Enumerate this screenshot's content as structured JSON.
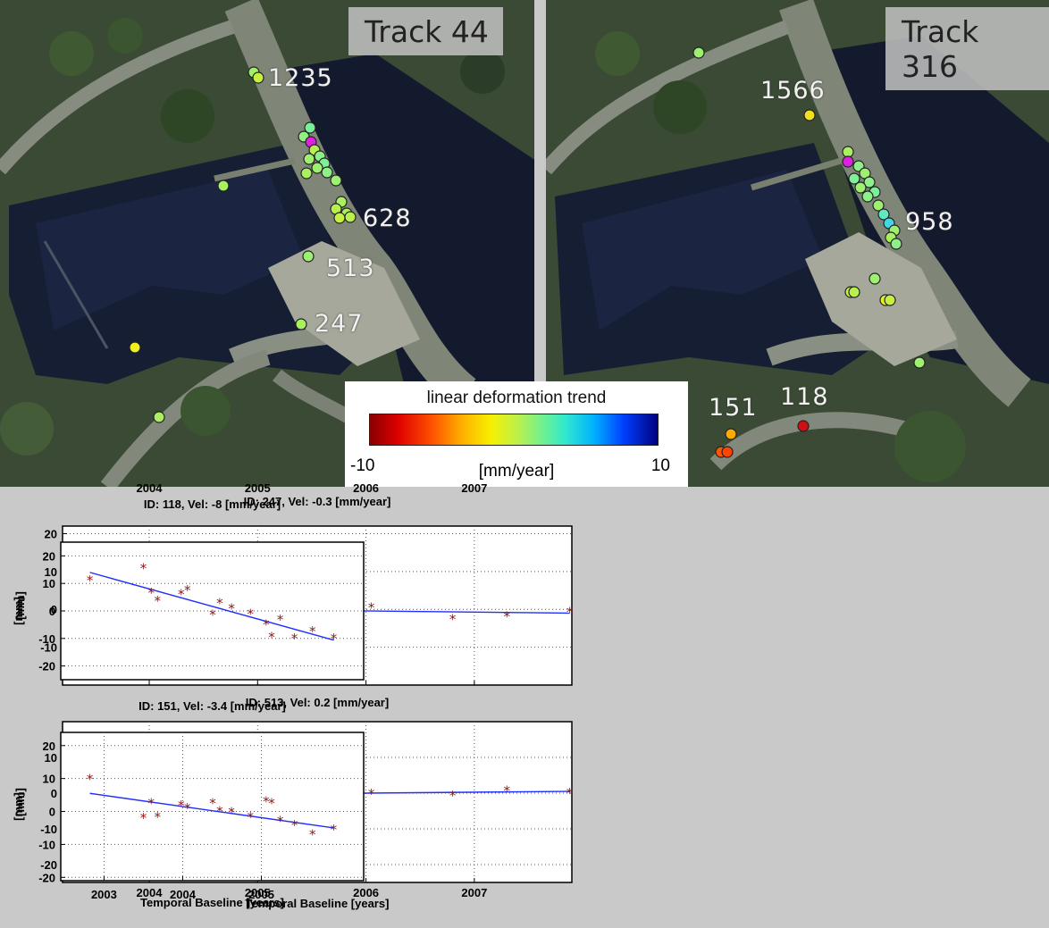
{
  "maps": {
    "left": {
      "title": "Track 44",
      "labels": [
        "1235",
        "628",
        "513",
        "247"
      ]
    },
    "right": {
      "title": "Track 316",
      "labels": [
        "1566",
        "958",
        "151",
        "118"
      ]
    }
  },
  "legend": {
    "title": "linear deformation trend",
    "min": "-10",
    "max": "10",
    "unit": "[mm/year]"
  },
  "chart_data": [
    {
      "type": "scatter",
      "title": "ID: 247, Vel: -0.3 [mm/year]",
      "xlabel": "",
      "ylabel": "[mm]",
      "xlim": [
        2003.2,
        2007.9
      ],
      "ylim": [
        -20,
        22
      ],
      "xticks": [
        2004,
        2005,
        2006,
        2007
      ],
      "yticks": [
        20,
        10,
        0,
        -10
      ],
      "grid": true,
      "points": [
        [
          2003.35,
          -4.3
        ],
        [
          2003.73,
          0.8
        ],
        [
          2004.0,
          1.0
        ],
        [
          2004.18,
          1.6
        ],
        [
          2004.33,
          -1.7
        ],
        [
          2004.52,
          -1.2
        ],
        [
          2004.6,
          2.9
        ],
        [
          2004.7,
          -2.0
        ],
        [
          2004.88,
          7.3
        ],
        [
          2004.98,
          -0.3
        ],
        [
          2005.14,
          1.2
        ],
        [
          2005.23,
          1.0
        ],
        [
          2005.45,
          -0.2
        ],
        [
          2005.55,
          -2.8
        ],
        [
          2005.73,
          0.2
        ],
        [
          2005.85,
          3.2
        ],
        [
          2006.05,
          0.4
        ],
        [
          2006.8,
          -2.7
        ],
        [
          2007.3,
          -2.0
        ],
        [
          2007.88,
          -0.8
        ]
      ],
      "trend": [
        [
          2003.35,
          0.4
        ],
        [
          2007.88,
          -1.0
        ]
      ],
      "marker_color": "#8b1a1a",
      "line_color": "#1f2fff"
    },
    {
      "type": "scatter",
      "title": "ID: 513, Vel: 0.2 [mm/year]",
      "xlabel": "Temporal Baseline [years]",
      "ylabel": "[mm]",
      "xlim": [
        2003.2,
        2007.9
      ],
      "ylim": [
        -25,
        20
      ],
      "xticks": [
        2004,
        2005,
        2006,
        2007
      ],
      "yticks": [
        10,
        0,
        -10,
        -20
      ],
      "grid": true,
      "points": [
        [
          2003.35,
          5.2
        ],
        [
          2003.73,
          -3.8
        ],
        [
          2004.0,
          1.2
        ],
        [
          2004.18,
          -12.5
        ],
        [
          2004.33,
          0.8
        ],
        [
          2004.52,
          1.0
        ],
        [
          2004.6,
          -2.2
        ],
        [
          2004.7,
          -3.2
        ],
        [
          2004.88,
          -0.8
        ],
        [
          2004.98,
          -1.2
        ],
        [
          2005.14,
          -2.0
        ],
        [
          2005.23,
          0.4
        ],
        [
          2005.45,
          -0.2
        ],
        [
          2005.55,
          -0.6
        ],
        [
          2005.73,
          2.2
        ],
        [
          2005.85,
          3.5
        ],
        [
          2006.05,
          -0.2
        ],
        [
          2006.8,
          -0.8
        ],
        [
          2007.3,
          0.6
        ],
        [
          2007.88,
          0.0
        ]
      ],
      "trend": [
        [
          2003.35,
          -0.7
        ],
        [
          2007.88,
          0.5
        ]
      ],
      "marker_color": "#8b1a1a",
      "line_color": "#1f2fff"
    },
    {
      "type": "scatter",
      "title": "ID: 118, Vel: -8 [mm/year]",
      "xlabel": "",
      "ylabel": "[mm]",
      "xlim": [
        2002.45,
        2006.3
      ],
      "ylim": [
        -25,
        25
      ],
      "xticks": [],
      "yticks": [
        20,
        10,
        0,
        -10,
        -20
      ],
      "grid": true,
      "points": [
        [
          2002.82,
          11.0
        ],
        [
          2003.5,
          15.5
        ],
        [
          2003.6,
          6.5
        ],
        [
          2003.68,
          3.5
        ],
        [
          2003.98,
          6.0
        ],
        [
          2004.06,
          7.5
        ],
        [
          2004.38,
          -1.5
        ],
        [
          2004.47,
          2.8
        ],
        [
          2004.62,
          0.8
        ],
        [
          2004.86,
          -1.2
        ],
        [
          2005.06,
          -5.0
        ],
        [
          2005.13,
          -9.5
        ],
        [
          2005.24,
          -3.2
        ],
        [
          2005.42,
          -10.0
        ],
        [
          2005.65,
          -7.5
        ],
        [
          2005.92,
          -10.0
        ]
      ],
      "trend": [
        [
          2002.82,
          14.0
        ],
        [
          2005.92,
          -10.6
        ]
      ],
      "marker_color": "#8b1a1a",
      "line_color": "#1f2fff"
    },
    {
      "type": "scatter",
      "title": "ID: 151, Vel: -3.4 [mm/year]",
      "xlabel": "Temporal Baseline [years]",
      "ylabel": "[mm]",
      "xlim": [
        2002.45,
        2006.3
      ],
      "ylim": [
        -21,
        24
      ],
      "xticks": [
        2003,
        2004,
        2005
      ],
      "yticks": [
        20,
        10,
        0,
        -10,
        -20
      ],
      "grid": true,
      "points": [
        [
          2002.82,
          9.8
        ],
        [
          2003.5,
          -2.0
        ],
        [
          2003.6,
          2.5
        ],
        [
          2003.68,
          -1.8
        ],
        [
          2003.98,
          1.8
        ],
        [
          2004.06,
          1.0
        ],
        [
          2004.38,
          2.5
        ],
        [
          2004.47,
          0.0
        ],
        [
          2004.62,
          -0.2
        ],
        [
          2004.86,
          -1.8
        ],
        [
          2005.06,
          3.0
        ],
        [
          2005.13,
          2.5
        ],
        [
          2005.24,
          -3.0
        ],
        [
          2005.42,
          -4.2
        ],
        [
          2005.65,
          -7.0
        ],
        [
          2005.92,
          -5.5
        ]
      ],
      "trend": [
        [
          2002.82,
          5.5
        ],
        [
          2005.92,
          -5.0
        ]
      ],
      "marker_color": "#8b1a1a",
      "line_color": "#1f2fff"
    }
  ]
}
